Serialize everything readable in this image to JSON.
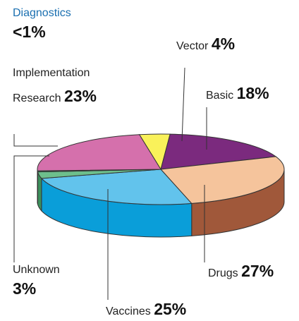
{
  "chart_data": {
    "type": "pie",
    "categories": [
      "Vector",
      "Basic",
      "Drugs",
      "Vaccines",
      "Unknown",
      "Diagnostics",
      "Implementation Research"
    ],
    "values": [
      4,
      18,
      27,
      25,
      3,
      0.5,
      23
    ],
    "value_labels": [
      "4%",
      "18%",
      "27%",
      "25%",
      "3%",
      "<1%",
      "23%"
    ],
    "colors": [
      "#f9f15a",
      "#7b2a7e",
      "#f5c49c",
      "#62c3ec",
      "#6dbf8c",
      "#2f8f5c",
      "#d570ac"
    ],
    "side_colors": [
      "#c9c030",
      "#4e1550",
      "#a0583a",
      "#0a9ed9",
      "#3d8f5c",
      "#1d5f3b",
      "#9a3f78"
    ]
  }
}
